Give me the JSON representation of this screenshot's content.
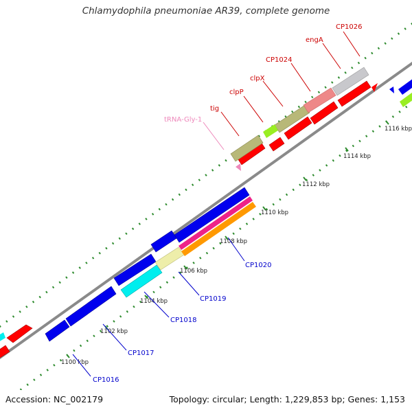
{
  "title": "Chlamydophila pneumoniae AR39, complete genome",
  "footer": {
    "accession": "Accession: NC_002179",
    "summary": "Topology: circular; Length: 1,229,853 bp; Genes: 1,153"
  },
  "colors": {
    "backbone": "#8a8a8a",
    "tick": "#2e8b2e",
    "label_top": "#cc0000",
    "label_bottom": "#0000cc",
    "label_trna": "#ee88bb"
  },
  "ticks": [
    "1100 kbp",
    "1102 kbp",
    "1104 kbp",
    "1106 kbp",
    "1108 kbp",
    "1110 kbp",
    "1112 kbp",
    "1114 kbp",
    "1116 kbp"
  ],
  "top_labels": [
    "tRNA-Gly-1",
    "tig",
    "clpP",
    "clpX",
    "CP1024",
    "engA",
    "CP1026"
  ],
  "bottom_labels": [
    "CP1016",
    "CP1017",
    "CP1018",
    "CP1019",
    "CP1020"
  ]
}
